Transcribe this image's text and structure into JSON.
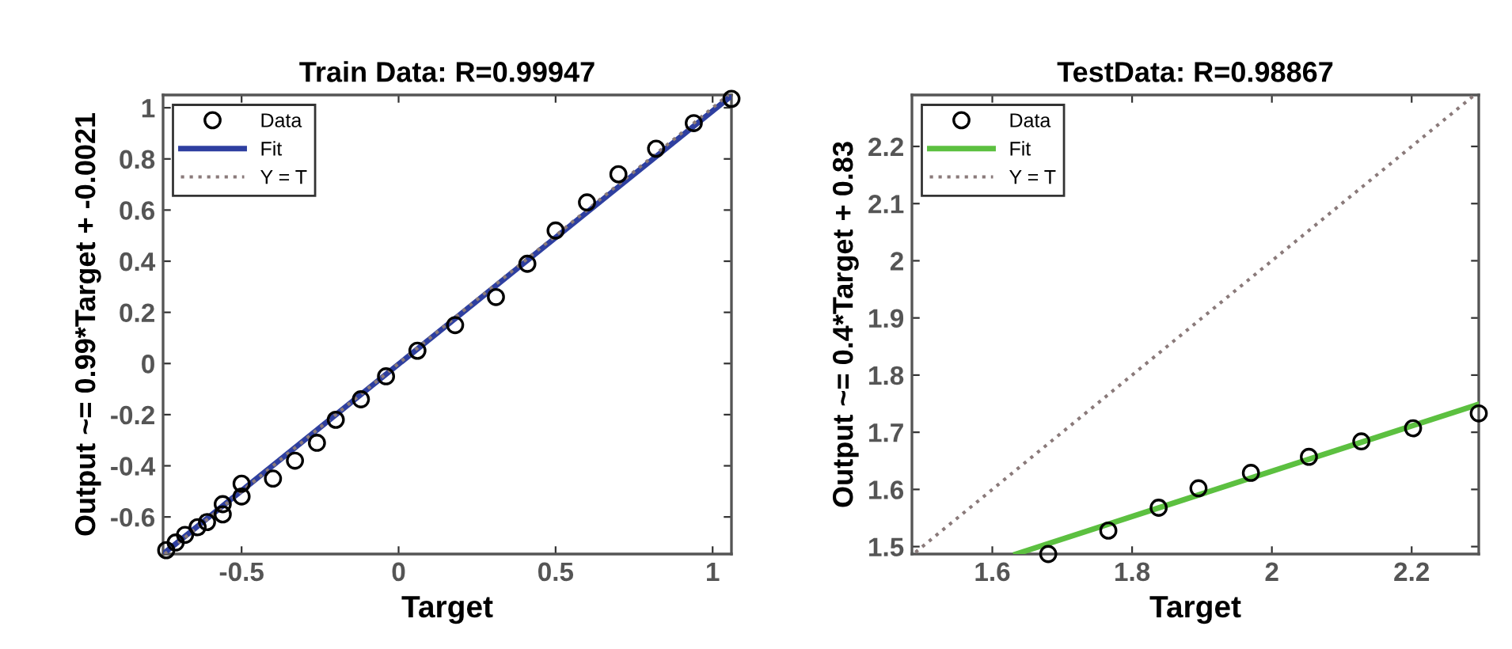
{
  "chart_data": [
    {
      "type": "scatter",
      "title": "Train Data: R=0.99947",
      "xlabel": "Target",
      "ylabel": "Output ~= 0.99*Target + -0.0021",
      "xlim": [
        -0.75,
        1.06
      ],
      "ylim": [
        -0.745,
        1.05
      ],
      "xticks": [
        -0.5,
        0,
        0.5,
        1
      ],
      "yticks": [
        -0.6,
        -0.4,
        -0.2,
        0,
        0.2,
        0.4,
        0.6,
        0.8,
        1
      ],
      "legend": "top left",
      "grid": false,
      "series": [
        {
          "name": "Data",
          "marker": "circle",
          "color": "#000000",
          "x": [
            1.06,
            0.94,
            0.82,
            0.7,
            0.6,
            0.5,
            0.41,
            0.31,
            0.18,
            0.06,
            -0.04,
            -0.12,
            -0.2,
            -0.26,
            -0.33,
            -0.4,
            -0.5,
            -0.5,
            -0.56,
            -0.56,
            -0.61,
            -0.64,
            -0.68,
            -0.71,
            -0.74
          ],
          "values": [
            1.035,
            0.94,
            0.84,
            0.74,
            0.63,
            0.52,
            0.39,
            0.26,
            0.15,
            0.05,
            -0.05,
            -0.14,
            -0.22,
            -0.31,
            -0.38,
            -0.45,
            -0.47,
            -0.52,
            -0.59,
            -0.55,
            -0.62,
            -0.64,
            -0.67,
            -0.7,
            -0.73
          ]
        },
        {
          "name": "Fit",
          "type": "line",
          "line_style": "solid",
          "color": "#2e3fa0",
          "x": [
            -0.75,
            1.06
          ],
          "values": [
            -0.745,
            1.047
          ]
        },
        {
          "name": "Y = T",
          "type": "line",
          "line_style": "dotted",
          "color": "#8a7a7a",
          "x": [
            -0.745,
            1.05
          ],
          "values": [
            -0.745,
            1.05
          ]
        }
      ]
    },
    {
      "type": "scatter",
      "title": "TestData: R=0.98867",
      "xlabel": "Target",
      "ylabel": "Output ~= 0.4*Target + 0.83",
      "xlim": [
        1.485,
        2.296
      ],
      "ylim": [
        1.487,
        2.29
      ],
      "xticks": [
        1.6,
        1.8,
        2,
        2.2
      ],
      "yticks": [
        1.5,
        1.6,
        1.7,
        1.8,
        1.9,
        2,
        2.1,
        2.2
      ],
      "legend": "top left",
      "grid": false,
      "series": [
        {
          "name": "Data",
          "marker": "circle",
          "color": "#000000",
          "x": [
            1.68,
            1.766,
            1.838,
            1.895,
            1.97,
            2.053,
            2.128,
            2.202,
            2.296
          ],
          "values": [
            1.487,
            1.528,
            1.568,
            1.602,
            1.629,
            1.657,
            1.684,
            1.707,
            1.733
          ]
        },
        {
          "name": "Fit",
          "type": "line",
          "line_style": "solid",
          "color": "#5cc040",
          "x": [
            1.634,
            2.296
          ],
          "values": [
            1.487,
            1.749
          ]
        },
        {
          "name": "Y = T",
          "type": "line",
          "line_style": "dotted",
          "color": "#8a7a7a",
          "x": [
            1.49,
            2.29
          ],
          "values": [
            1.49,
            2.29
          ]
        }
      ]
    }
  ]
}
